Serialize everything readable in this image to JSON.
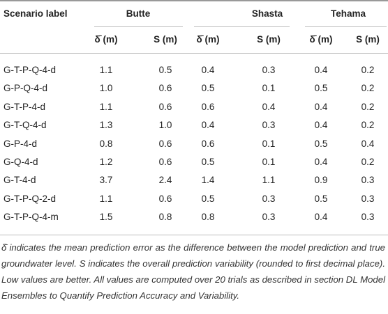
{
  "table": {
    "columns": [
      "Scenario label",
      "Butte",
      "Shasta",
      "Tehama"
    ],
    "subcolumns": [
      "δ̄ (m)",
      "S (m)",
      "δ̄ (m)",
      "S (m)",
      "δ̄ (m)",
      "S (m)"
    ],
    "rows": [
      [
        "G-T-P-Q-4-d",
        "1.1",
        "0.5",
        "0.4",
        "0.3",
        "0.4",
        "0.2"
      ],
      [
        "G-P-Q-4-d",
        "1.0",
        "0.6",
        "0.5",
        "0.1",
        "0.5",
        "0.2"
      ],
      [
        "G-T-P-4-d",
        "1.1",
        "0.6",
        "0.6",
        "0.4",
        "0.4",
        "0.2"
      ],
      [
        "G-T-Q-4-d",
        "1.3",
        "1.0",
        "0.4",
        "0.3",
        "0.4",
        "0.2"
      ],
      [
        "G-P-4-d",
        "0.8",
        "0.6",
        "0.6",
        "0.1",
        "0.5",
        "0.4"
      ],
      [
        "G-Q-4-d",
        "1.2",
        "0.6",
        "0.5",
        "0.1",
        "0.4",
        "0.2"
      ],
      [
        "G-T-4-d",
        "3.7",
        "2.4",
        "1.4",
        "1.1",
        "0.9",
        "0.3"
      ],
      [
        "G-T-P-Q-2-d",
        "1.1",
        "0.6",
        "0.5",
        "0.3",
        "0.5",
        "0.3"
      ],
      [
        "G-T-P-Q-4-m",
        "1.5",
        "0.8",
        "0.8",
        "0.3",
        "0.4",
        "0.3"
      ]
    ]
  },
  "footnote": "δ̄ indicates the mean prediction error as the difference between the model prediction and true groundwater level. S indicates the overall prediction variability (rounded to first decimal place). Low values are better. All values are computed over 20 trials as described in section DL Model Ensembles to Quantify Prediction Accuracy and Variability."
}
